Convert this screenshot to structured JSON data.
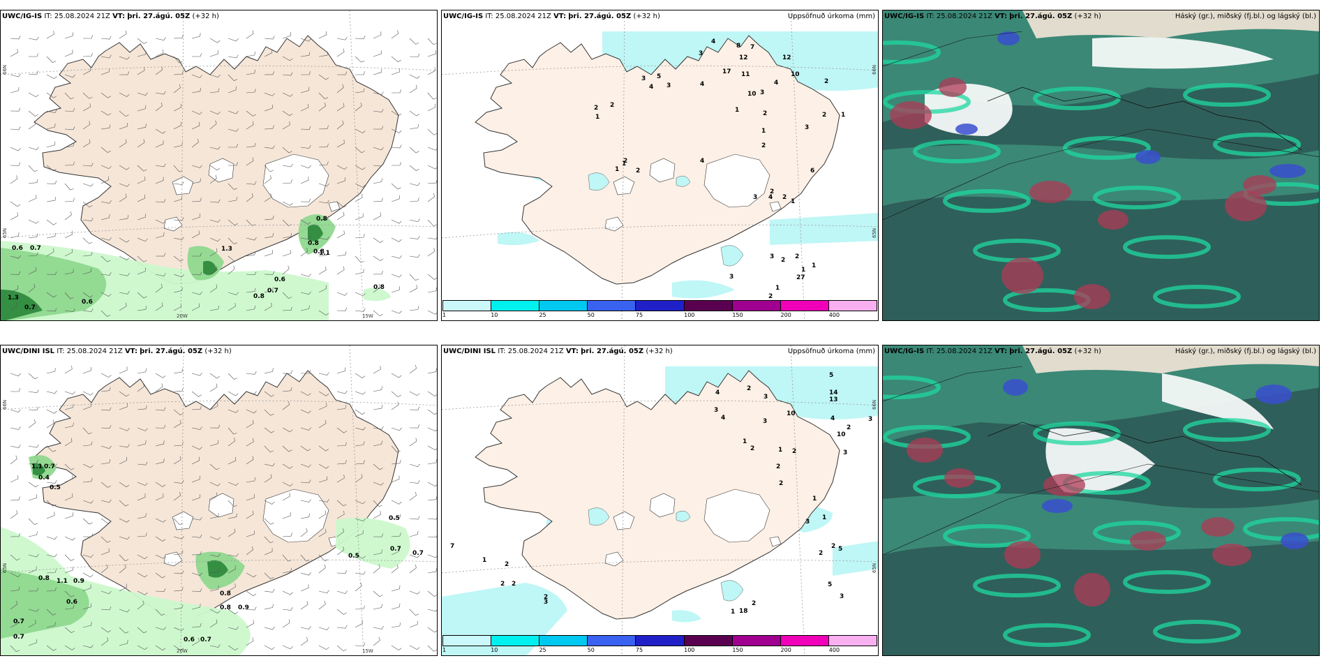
{
  "panels": [
    {
      "id": "ig-wind",
      "model": "UWC/IG-IS",
      "it_label": "IT:",
      "it_value": "25.08.2024 21Z",
      "vt_label": "VT:",
      "vt_value": "þri. 27.ágú. 05Z",
      "lead": "(+32 h)",
      "right_title": "",
      "precip_labels": [
        "0.6",
        "0.7",
        "1.3",
        "0.7",
        "0.6",
        "1.3",
        "0.6",
        "0.7",
        "0.8",
        "0.8",
        "1.1",
        "0.8",
        "0.8",
        "0.8"
      ],
      "axis_labels": [
        "66N",
        "65N",
        "20W",
        "15W"
      ]
    },
    {
      "id": "ig-precip",
      "model": "UWC/IG-IS",
      "it_label": "IT:",
      "it_value": "25.08.2024 21Z",
      "vt_label": "VT:",
      "vt_value": "þri. 27.ágú. 05Z",
      "lead": "(+32 h)",
      "right_title": "Uppsöfnuð úrkoma (mm)",
      "precip_labels": [
        "4",
        "8",
        "7",
        "3",
        "12",
        "12",
        "17",
        "11",
        "3",
        "5",
        "4",
        "3",
        "4",
        "10",
        "4",
        "3",
        "2",
        "10",
        "2",
        "2",
        "1",
        "1",
        "2",
        "3",
        "1",
        "2",
        "1",
        "2",
        "2",
        "1",
        "1",
        "2",
        "4",
        "6",
        "2",
        "3",
        "2",
        "4",
        "1",
        "3",
        "2",
        "2",
        "1",
        "1",
        "27",
        "2",
        "3",
        "1"
      ],
      "axis_labels": [
        "66N",
        "65N"
      ]
    },
    {
      "id": "ig-cloud",
      "model": "UWC/IG-IS",
      "it_label": "IT:",
      "it_value": "25.08.2024 21Z",
      "vt_label": "VT:",
      "vt_value": "þri. 27.ágú. 05Z",
      "lead": "(+32 h)",
      "right_title": "Háský (gr.), miðský (fj.bl.) og lágský (bl.)"
    },
    {
      "id": "dini-wind",
      "model": "UWC/DINI ISL",
      "it_label": "IT:",
      "it_value": "25.08.2024 21Z",
      "vt_label": "VT:",
      "vt_value": "þri. 27.ágú. 05Z",
      "lead": "(+32 h)",
      "right_title": "",
      "precip_labels": [
        "1.1",
        "0.7",
        "0.4",
        "0.5",
        "0.8",
        "1.1",
        "0.9",
        "0.6",
        "0.7",
        "0.7",
        "0.6",
        "0.7",
        "0.8",
        "0.8",
        "0.9",
        "0.5",
        "0.5",
        "0.7",
        "0.7"
      ],
      "axis_labels": [
        "66N",
        "65N",
        "20W",
        "15W"
      ]
    },
    {
      "id": "dini-precip",
      "model": "UWC/DINI ISL",
      "it_label": "IT:",
      "it_value": "25.08.2024 21Z",
      "vt_label": "VT:",
      "vt_value": "þri. 27.ágú. 05Z",
      "lead": "(+32 h)",
      "right_title": "Uppsöfnuð úrkoma (mm)",
      "precip_labels": [
        "5",
        "14",
        "13",
        "2",
        "3",
        "4",
        "3",
        "4",
        "3",
        "10",
        "4",
        "2",
        "3",
        "1",
        "2",
        "1",
        "2",
        "2",
        "10",
        "3",
        "2",
        "1",
        "3",
        "1",
        "2",
        "2",
        "5",
        "5",
        "7",
        "1",
        "2",
        "2",
        "2",
        "2",
        "3",
        "18",
        "1",
        "2",
        "3"
      ],
      "axis_labels": [
        "66N",
        "65N"
      ]
    },
    {
      "id": "dini-cloud",
      "model": "UWC/IG-IS",
      "it_label": "IT:",
      "it_value": "25.08.2024 21Z",
      "vt_label": "VT:",
      "vt_value": "þri. 27.ágú. 05Z",
      "lead": "(+32 h)",
      "right_title": "Háský (gr.), miðský (fj.bl.) og lágský (bl.)"
    }
  ],
  "colorbar": {
    "ticks": [
      "1",
      "10",
      "25",
      "50",
      "75",
      "100",
      "150",
      "200",
      "400"
    ],
    "colors": [
      "#cbf9fb",
      "#00f0f0",
      "#00c8f0",
      "#3a62f0",
      "#2020c8",
      "#5a0050",
      "#a00090",
      "#f000b8",
      "#f8b0f0"
    ]
  },
  "colors": {
    "land": "#f5e6d8",
    "sea": "#ffffff",
    "precip_light": "#ccf8cc",
    "precip_mid": "#8fd88f",
    "precip_dark": "#2e8b3e",
    "precip_cyan": "#bff6f6",
    "cloud_dark": "#2f5f5a",
    "cloud_mid": "#3d8f7b",
    "cloud_bright": "#1fd8a0",
    "cloud_red": "#b03a55",
    "cloud_blue": "#3a4fcf"
  }
}
